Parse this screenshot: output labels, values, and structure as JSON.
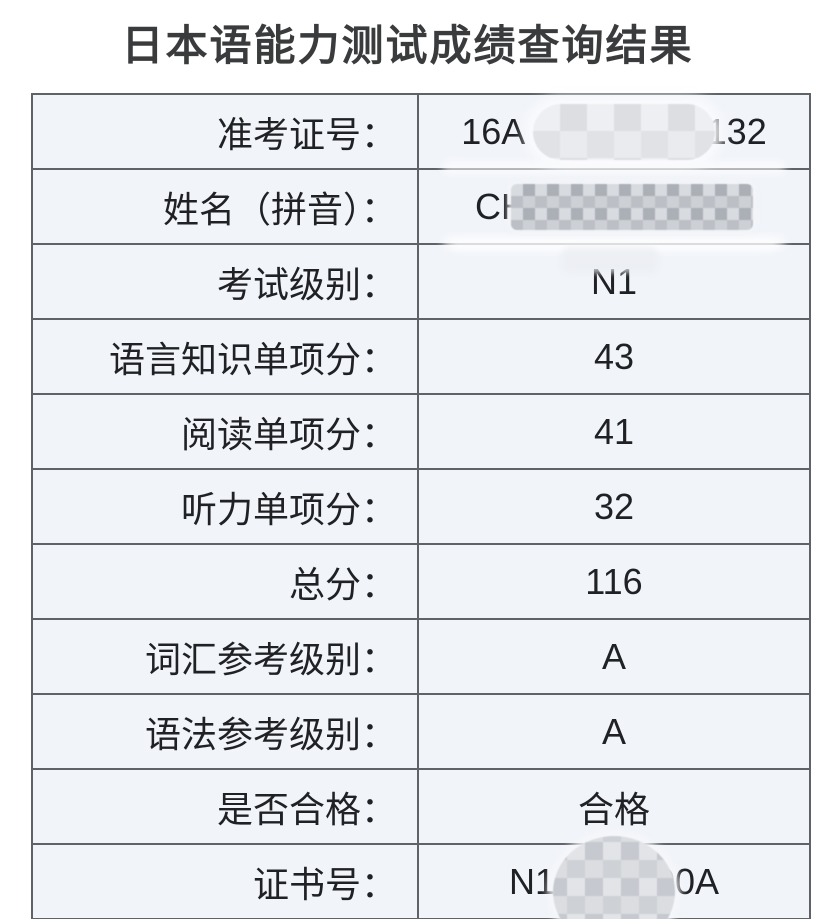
{
  "page": {
    "title": "日本语能力测试成绩查询结果"
  },
  "colors": {
    "cell_background": "#f1f4f9",
    "table_border": "#5f6368",
    "text": "#1f2124",
    "title_text": "#3a3b3d",
    "page_background": "#ffffff"
  },
  "table": {
    "rows": [
      {
        "id": "exam-number",
        "label": "准考证号：",
        "value_prefix": "16A",
        "value_suffix": "1132",
        "redaction": "pill-mosaic"
      },
      {
        "id": "name-pinyin",
        "label": "姓名（拼音）：",
        "value_prefix": "CH",
        "value_suffix": "",
        "redaction": "mosaic"
      },
      {
        "id": "exam-level",
        "label": "考试级别：",
        "value": "N1"
      },
      {
        "id": "language-knowledge-score",
        "label": "语言知识单项分：",
        "value": "43"
      },
      {
        "id": "reading-score",
        "label": "阅读单项分：",
        "value": "41"
      },
      {
        "id": "listening-score",
        "label": "听力单项分：",
        "value": "32"
      },
      {
        "id": "total-score",
        "label": "总分：",
        "value": "116"
      },
      {
        "id": "vocabulary-reference-level",
        "label": "词汇参考级别：",
        "value": "A"
      },
      {
        "id": "grammar-reference-level",
        "label": "语法参考级别：",
        "value": "A"
      },
      {
        "id": "pass-status",
        "label": "是否合格：",
        "value": "合格"
      },
      {
        "id": "certificate-number",
        "label": "证书号：",
        "value_prefix": "N1",
        "value_suffix": "00A",
        "redaction": "ellipse-mosaic"
      }
    ]
  }
}
